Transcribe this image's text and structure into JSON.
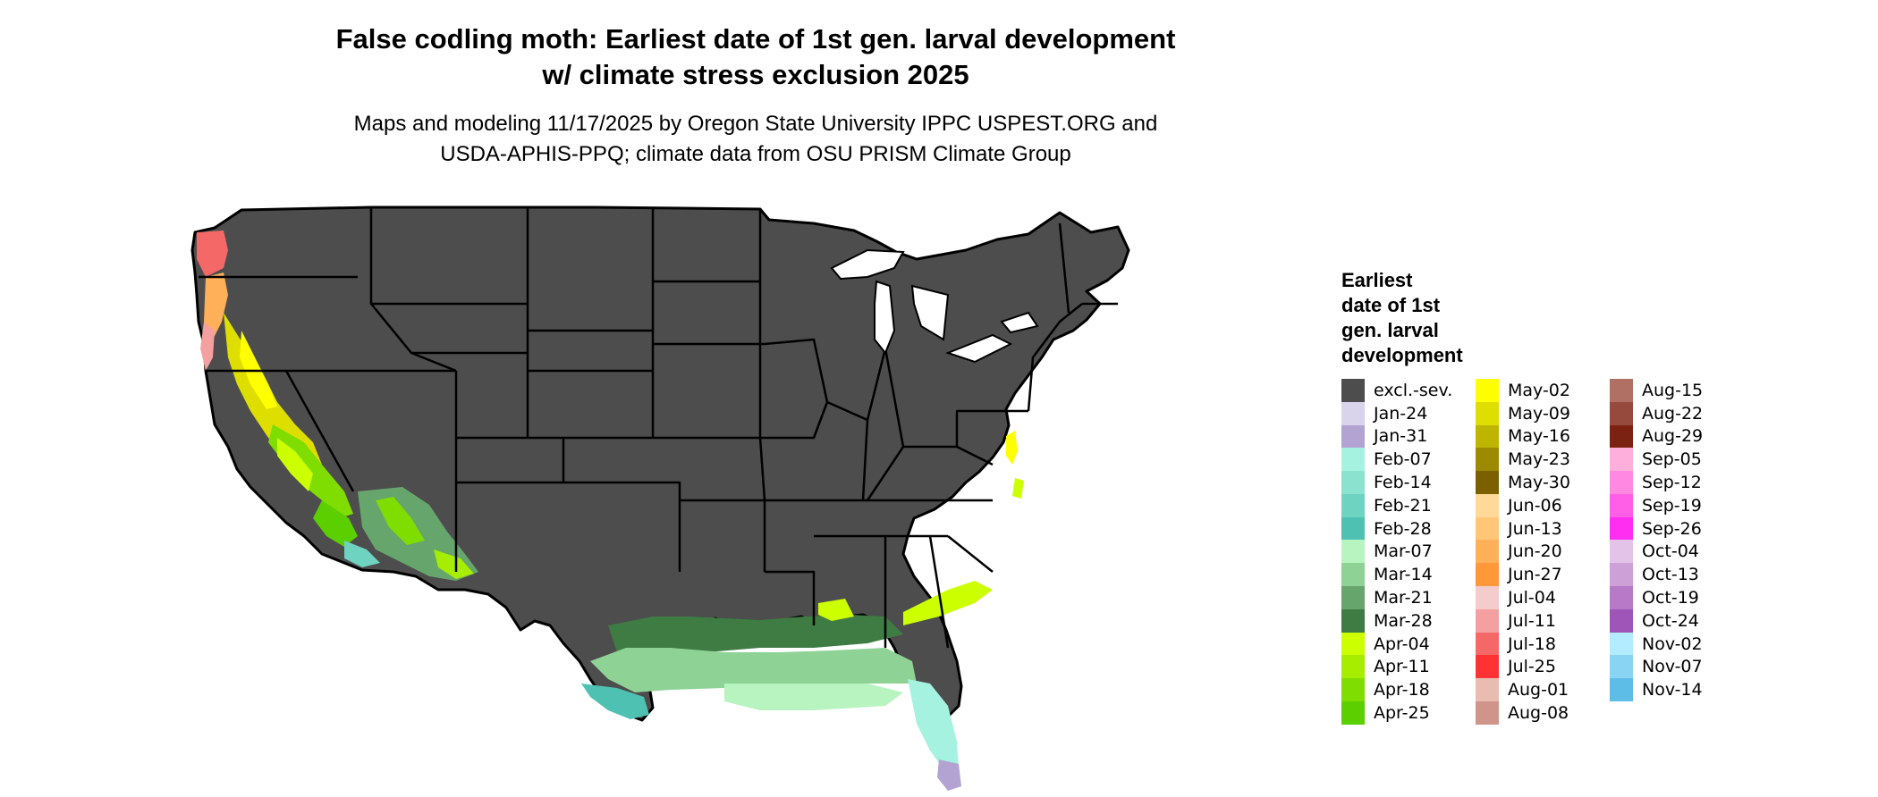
{
  "header": {
    "title_line1": "False codling moth: Earliest date of 1st gen. larval development",
    "title_line2": "w/ climate stress exclusion 2025",
    "subtitle_line1": "Maps and modeling 11/17/2025 by Oregon State University IPPC USPEST.ORG and",
    "subtitle_line2": "USDA-APHIS-PPQ; climate data from OSU PRISM Climate Group"
  },
  "legend": {
    "title_lines": [
      "Earliest",
      "date of 1st",
      "gen. larval",
      "development"
    ],
    "columns": [
      [
        {
          "label": "excl.-sev.",
          "color": "#4d4d4d"
        },
        {
          "label": "Jan-24",
          "color": "#dad3ec"
        },
        {
          "label": "Jan-31",
          "color": "#b2a3d2"
        },
        {
          "label": "Feb-07",
          "color": "#a6f2e0"
        },
        {
          "label": "Feb-14",
          "color": "#8ae2cf"
        },
        {
          "label": "Feb-21",
          "color": "#6fd3c2"
        },
        {
          "label": "Feb-28",
          "color": "#4fc1b3"
        },
        {
          "label": "Mar-07",
          "color": "#b8f4bf"
        },
        {
          "label": "Mar-14",
          "color": "#8fd295"
        },
        {
          "label": "Mar-21",
          "color": "#66a56c"
        },
        {
          "label": "Mar-28",
          "color": "#3e7c43"
        },
        {
          "label": "Apr-04",
          "color": "#ccff00"
        },
        {
          "label": "Apr-11",
          "color": "#a6ed00"
        },
        {
          "label": "Apr-18",
          "color": "#80dd00"
        },
        {
          "label": "Apr-25",
          "color": "#5bcf00"
        }
      ],
      [
        {
          "label": "May-02",
          "color": "#ffff00"
        },
        {
          "label": "May-09",
          "color": "#dede00"
        },
        {
          "label": "May-16",
          "color": "#bdb500"
        },
        {
          "label": "May-23",
          "color": "#9c8a00"
        },
        {
          "label": "May-30",
          "color": "#7b6000"
        },
        {
          "label": "Jun-06",
          "color": "#ffd998"
        },
        {
          "label": "Jun-13",
          "color": "#ffc678"
        },
        {
          "label": "Jun-20",
          "color": "#ffb058"
        },
        {
          "label": "Jun-27",
          "color": "#ff9838"
        },
        {
          "label": "Jul-04",
          "color": "#f5cccc"
        },
        {
          "label": "Jul-11",
          "color": "#f5a0a0"
        },
        {
          "label": "Jul-18",
          "color": "#f56868"
        },
        {
          "label": "Jul-25",
          "color": "#ff3333"
        },
        {
          "label": "Aug-01",
          "color": "#e8bcb0"
        },
        {
          "label": "Aug-08",
          "color": "#cf958a"
        }
      ],
      [
        {
          "label": "Aug-15",
          "color": "#b07064"
        },
        {
          "label": "Aug-22",
          "color": "#964a3d"
        },
        {
          "label": "Aug-29",
          "color": "#7c2213"
        },
        {
          "label": "Sep-05",
          "color": "#ffafdc"
        },
        {
          "label": "Sep-12",
          "color": "#ff88e0"
        },
        {
          "label": "Sep-19",
          "color": "#ff5fe6"
        },
        {
          "label": "Sep-26",
          "color": "#ff2ef0"
        },
        {
          "label": "Oct-04",
          "color": "#e3c4e8"
        },
        {
          "label": "Oct-13",
          "color": "#cda0d8"
        },
        {
          "label": "Oct-19",
          "color": "#b77ac9"
        },
        {
          "label": "Oct-24",
          "color": "#9f54b8"
        },
        {
          "label": "Nov-02",
          "color": "#b4ecff"
        },
        {
          "label": "Nov-07",
          "color": "#88d4f2"
        },
        {
          "label": "Nov-14",
          "color": "#5ebde6"
        }
      ]
    ]
  },
  "map": {
    "base_color": "#4d4d4d",
    "border_color": "#000000"
  }
}
